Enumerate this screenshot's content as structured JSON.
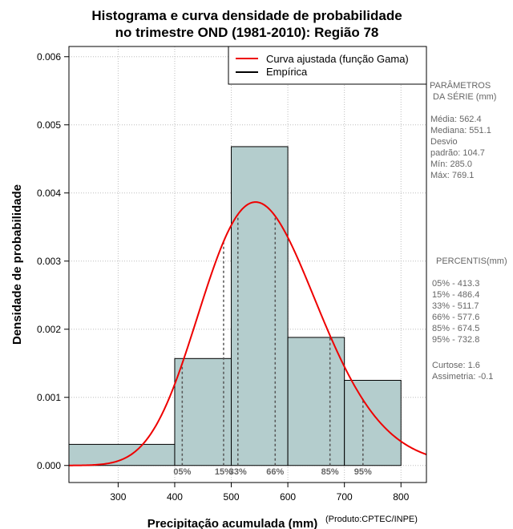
{
  "chart_data": {
    "type": "histogram",
    "title_line1": "Histograma e curva densidade de probabilidade",
    "title_line2": "no trimestre OND (1981-2010): Região 78",
    "xlabel": "Precipitação acumulada (mm)",
    "ylabel": "Densidade de probabilidade",
    "credit": "(Produto:CPTEC/INPE)",
    "xlim": [
      213,
      845
    ],
    "ylim": [
      -0.00025,
      0.00615
    ],
    "x_ticks": [
      300,
      400,
      500,
      600,
      700,
      800
    ],
    "y_ticks": [
      0.0,
      0.001,
      0.002,
      0.003,
      0.004,
      0.005,
      0.006
    ],
    "y_tick_labels": [
      "0.000",
      "0.001",
      "0.002",
      "0.003",
      "0.004",
      "0.005",
      "0.006"
    ],
    "bins": [
      {
        "from": 213,
        "to": 400,
        "density": 0.00031
      },
      {
        "from": 400,
        "to": 500,
        "density": 0.00157
      },
      {
        "from": 500,
        "to": 600,
        "density": 0.00468
      },
      {
        "from": 600,
        "to": 700,
        "density": 0.00188
      },
      {
        "from": 700,
        "to": 800,
        "density": 0.00125
      }
    ],
    "gamma_fit": {
      "mean": 562.4,
      "sd": 104.7
    },
    "legend": {
      "position": "top-right",
      "fitted_label": "Curva ajustada (função Gama)",
      "empirical_label": "Empírica"
    },
    "percentiles": [
      {
        "label": "05%",
        "value": 413.3
      },
      {
        "label": "15%",
        "value": 486.4
      },
      {
        "label": "33%",
        "value": 511.7
      },
      {
        "label": "66%",
        "value": 577.6
      },
      {
        "label": "85%",
        "value": 674.5
      },
      {
        "label": "95%",
        "value": 732.8
      }
    ],
    "colors": {
      "bar_fill": "#b4cdcd",
      "curve": "#ee0000",
      "grid": "#bebebe",
      "percentile_line": "#555555"
    }
  },
  "side_panel": {
    "params_heading_1": "PARÂMETROS",
    "params_heading_2": "DA SÉRIE (mm)",
    "media": "Média:  562.4",
    "mediana": "Mediana:  551.1",
    "desvio_1": "Desvio",
    "desvio_2": "padrão:  104.7",
    "min": "Mín:  285.0",
    "max": "Máx:  769.1",
    "percentis_heading": "PERCENTIS(mm)",
    "p05": "05% -  413.3",
    "p15": "15% -  486.4",
    "p33": "33% -  511.7",
    "p66": "66% -  577.6",
    "p85": "85% -  674.5",
    "p95": "95% -  732.8",
    "curtose": "Curtose:  1.6",
    "assimetria": "Assimetria:  -0.1"
  }
}
